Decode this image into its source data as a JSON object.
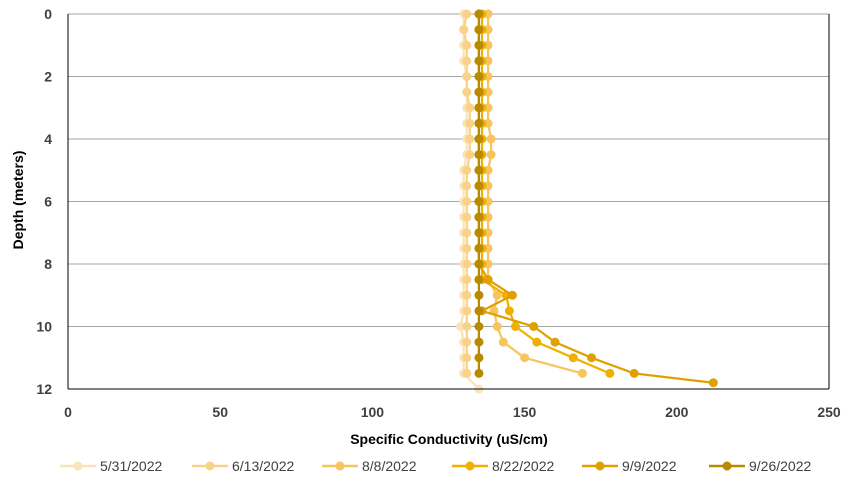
{
  "chart_data": {
    "type": "line",
    "xlabel": "Specific Conductivity (uS/cm)",
    "ylabel": "Depth (meters)",
    "xlim": [
      0,
      250
    ],
    "ylim": [
      0,
      12
    ],
    "y_inverted": true,
    "x_axis_position": "top",
    "x_ticks": [
      "0",
      "50",
      "100",
      "150",
      "200",
      "250"
    ],
    "y_ticks": [
      "0",
      "2",
      "4",
      "6",
      "8",
      "10",
      "12"
    ],
    "grid": "horizontal",
    "legend_position": "bottom",
    "series": [
      {
        "name": "5/31/2022",
        "color": "#FBE3B8",
        "points": [
          [
            130,
            0
          ],
          [
            130,
            0.5
          ],
          [
            130,
            1
          ],
          [
            130,
            1.5
          ],
          [
            131,
            2
          ],
          [
            131,
            2.5
          ],
          [
            131,
            3
          ],
          [
            131,
            3.5
          ],
          [
            131,
            4
          ],
          [
            131,
            4.5
          ],
          [
            130,
            5
          ],
          [
            130,
            5.5
          ],
          [
            130,
            6
          ],
          [
            130,
            6.5
          ],
          [
            130,
            7
          ],
          [
            130,
            7.5
          ],
          [
            130,
            8
          ],
          [
            130,
            8.5
          ],
          [
            130,
            9
          ],
          [
            130,
            9.5
          ],
          [
            129,
            10
          ],
          [
            130,
            10.5
          ],
          [
            130,
            11
          ],
          [
            130,
            11.5
          ],
          [
            135,
            12
          ]
        ]
      },
      {
        "name": "6/13/2022",
        "color": "#F9D28A",
        "points": [
          [
            131,
            0
          ],
          [
            130,
            0.5
          ],
          [
            131,
            1
          ],
          [
            131,
            1.5
          ],
          [
            131,
            2
          ],
          [
            131,
            2.5
          ],
          [
            132,
            3
          ],
          [
            132,
            3.5
          ],
          [
            132,
            4
          ],
          [
            132,
            4.5
          ],
          [
            131,
            5
          ],
          [
            131,
            5.5
          ],
          [
            131,
            6
          ],
          [
            131,
            6.5
          ],
          [
            131,
            7
          ],
          [
            131,
            7.5
          ],
          [
            131,
            8
          ],
          [
            131,
            8.5
          ],
          [
            131,
            9
          ],
          [
            131,
            9.5
          ],
          [
            131,
            10
          ],
          [
            131,
            10.5
          ],
          [
            131,
            11
          ],
          [
            131,
            11.5
          ]
        ]
      },
      {
        "name": "8/8/2022",
        "color": "#F6C55E",
        "points": [
          [
            138,
            0
          ],
          [
            138,
            0.5
          ],
          [
            138,
            1
          ],
          [
            138,
            1.5
          ],
          [
            138,
            2
          ],
          [
            138,
            2.5
          ],
          [
            138,
            3
          ],
          [
            138,
            3.5
          ],
          [
            139,
            4
          ],
          [
            139,
            4.5
          ],
          [
            138,
            5
          ],
          [
            138,
            5.5
          ],
          [
            138,
            6
          ],
          [
            138,
            6.5
          ],
          [
            138,
            7
          ],
          [
            138,
            7.5
          ],
          [
            138,
            8
          ],
          [
            138,
            8.5
          ],
          [
            141,
            9
          ],
          [
            140,
            9.5
          ],
          [
            141,
            10
          ],
          [
            143,
            10.5
          ],
          [
            150,
            11
          ],
          [
            169,
            11.5
          ]
        ]
      },
      {
        "name": "8/22/2022",
        "color": "#F0B000",
        "points": [
          [
            136,
            0
          ],
          [
            136,
            0.5
          ],
          [
            136,
            1
          ],
          [
            136,
            1.5
          ],
          [
            136,
            2
          ],
          [
            136,
            2.5
          ],
          [
            136,
            3
          ],
          [
            136,
            3.5
          ],
          [
            136,
            4
          ],
          [
            136,
            4.5
          ],
          [
            136,
            5
          ],
          [
            136,
            5.5
          ],
          [
            136,
            6
          ],
          [
            136,
            6.5
          ],
          [
            136,
            7
          ],
          [
            136,
            7.5
          ],
          [
            136,
            8
          ],
          [
            136,
            8.5
          ],
          [
            144,
            9
          ],
          [
            145,
            9.5
          ],
          [
            147,
            10
          ],
          [
            154,
            10.5
          ],
          [
            166,
            11
          ],
          [
            178,
            11.5
          ]
        ]
      },
      {
        "name": "9/9/2022",
        "color": "#DEA100",
        "points": [
          [
            135,
            0
          ],
          [
            135,
            0.5
          ],
          [
            135,
            1
          ],
          [
            135,
            1.5
          ],
          [
            135,
            2
          ],
          [
            135,
            2.5
          ],
          [
            135,
            3
          ],
          [
            135,
            3.5
          ],
          [
            135,
            4
          ],
          [
            135,
            4.5
          ],
          [
            135,
            5
          ],
          [
            135,
            5.5
          ],
          [
            135,
            6
          ],
          [
            135,
            6.5
          ],
          [
            135,
            7
          ],
          [
            135,
            7.5
          ],
          [
            135,
            8
          ],
          [
            138,
            8.5
          ],
          [
            146,
            9
          ],
          [
            136,
            9.5
          ],
          [
            153,
            10
          ],
          [
            160,
            10.5
          ],
          [
            172,
            11
          ],
          [
            186,
            11.5
          ],
          [
            212,
            11.8
          ]
        ]
      },
      {
        "name": "9/26/2022",
        "color": "#B88A00",
        "points": [
          [
            135,
            0
          ],
          [
            135,
            0.5
          ],
          [
            135,
            1
          ],
          [
            135,
            1.5
          ],
          [
            135,
            2
          ],
          [
            135,
            2.5
          ],
          [
            135,
            3
          ],
          [
            135,
            3.5
          ],
          [
            135,
            4
          ],
          [
            135,
            4.5
          ],
          [
            135,
            5
          ],
          [
            135,
            5.5
          ],
          [
            135,
            6
          ],
          [
            135,
            6.5
          ],
          [
            135,
            7
          ],
          [
            135,
            7.5
          ],
          [
            135,
            8
          ],
          [
            135,
            8.5
          ],
          [
            135,
            9
          ],
          [
            135,
            9.5
          ],
          [
            135,
            10
          ],
          [
            135,
            10.5
          ],
          [
            135,
            11
          ],
          [
            135,
            11.5
          ]
        ]
      }
    ]
  }
}
